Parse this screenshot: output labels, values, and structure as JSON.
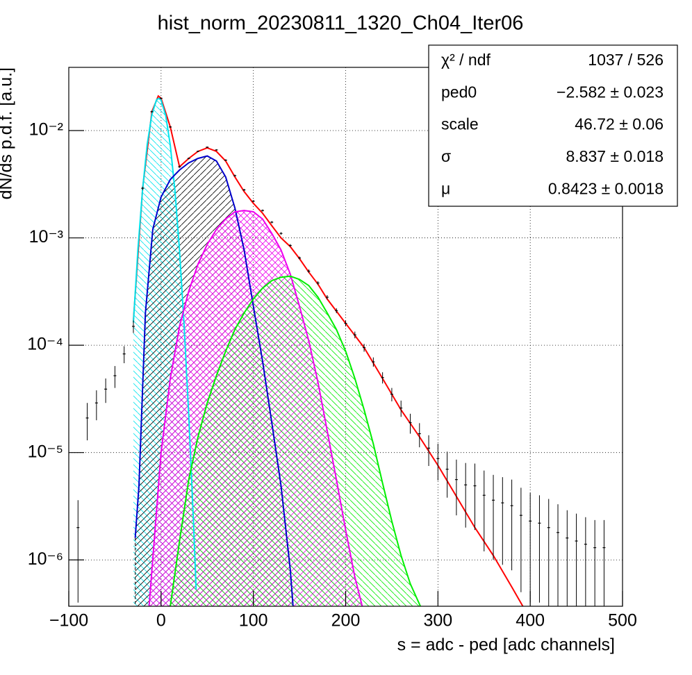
{
  "chart_data": {
    "type": "line",
    "title": "hist_norm_20230811_1320_Ch04_Iter06",
    "x_label": "s = adc - ped [adc channels]",
    "y_label": "dN/ds p.d.f. [a.u.]",
    "xlim": [
      -100,
      500
    ],
    "ylim": [
      3.7e-07,
      0.0388
    ],
    "log_y": true,
    "grid": true,
    "xticks": [
      {
        "value": -100,
        "label": "−100"
      },
      0,
      100,
      200,
      300,
      400,
      500
    ],
    "yticks": [
      {
        "value": 1e-06,
        "label": "10⁻⁶"
      },
      {
        "value": 1e-05,
        "label": "10⁻⁵"
      },
      {
        "value": 0.0001,
        "label": "10⁻⁴"
      },
      {
        "value": 0.001,
        "label": "10⁻³"
      },
      {
        "value": 0.01,
        "label": "10⁻²"
      }
    ],
    "series": [
      {
        "color": "#000000",
        "x": [
          -90,
          -80,
          -70,
          -60,
          -50,
          -40,
          -30,
          -20,
          -10,
          0,
          10,
          20,
          30,
          40,
          50,
          60,
          70,
          80,
          90,
          100,
          110,
          120,
          130,
          140,
          150,
          160,
          170,
          180,
          190,
          200,
          210,
          220,
          230,
          240,
          250,
          260,
          270,
          280,
          290,
          300,
          310,
          320,
          330,
          340,
          350,
          360,
          370,
          380,
          390,
          400,
          410,
          420,
          430,
          440,
          450,
          460,
          470,
          480
        ],
        "values": [
          2e-06,
          2.1e-05,
          2.9e-05,
          3.9e-05,
          5.2e-05,
          8.3e-05,
          0.00015,
          0.0029,
          0.015,
          0.02,
          0.0108,
          0.0046,
          0.0055,
          0.0064,
          0.007,
          0.0066,
          0.0053,
          0.0038,
          0.0028,
          0.0022,
          0.0018,
          0.0014,
          0.0011,
          0.00085,
          0.00065,
          0.00049,
          0.00038,
          0.00028,
          0.00021,
          0.00016,
          0.000125,
          9.5e-05,
          7e-05,
          5e-05,
          3.5e-05,
          2.6e-05,
          1.9e-05,
          1.5e-05,
          1.1e-05,
          8.8e-06,
          7e-06,
          5.6e-06,
          5e-06,
          4.9e-06,
          4e-06,
          3.6e-06,
          3.4e-06,
          3.2e-06,
          2.6e-06,
          2.3e-06,
          2.2e-06,
          2e-06,
          1.8e-06,
          1.6e-06,
          1.5e-06,
          1.4e-06,
          1.3e-06,
          1.3e-06
        ],
        "errors": [
          1.6e-06,
          8e-06,
          9e-06,
          1e-05,
          1.2e-05,
          1.5e-05,
          2e-05,
          0.0001,
          0.0003,
          0.0003,
          0.0002,
          0.0001,
          0.0001,
          0.0001,
          0.0001,
          0.0001,
          0.0001,
          8e-05,
          6e-05,
          5e-05,
          4e-05,
          3.5e-05,
          3e-05,
          2.5e-05,
          2e-05,
          1.8e-05,
          1.5e-05,
          1.3e-05,
          1.1e-05,
          1e-05,
          9e-06,
          8e-06,
          7e-06,
          6e-06,
          5e-06,
          4.5e-06,
          4e-06,
          3.8e-06,
          3.5e-06,
          3.3e-06,
          3.2e-06,
          3e-06,
          3e-06,
          3e-06,
          2.8e-06,
          2.6e-06,
          2.5e-06,
          2.4e-06,
          2.1e-06,
          1.9e-06,
          1.8e-06,
          1.7e-06,
          1.5e-06,
          1.3e-06,
          1.2e-06,
          1.1e-06,
          1.05e-06,
          1.05e-06
        ]
      },
      {
        "color": "#ff0000",
        "x": [
          -30,
          -20,
          -10,
          -3,
          0,
          10,
          20,
          30,
          40,
          50,
          60,
          70,
          80,
          90,
          100,
          110,
          120,
          130,
          140,
          150,
          160,
          170,
          180,
          200,
          220,
          240,
          260,
          280,
          300,
          320,
          340,
          360,
          380,
          392
        ],
        "values": [
          0.00017,
          0.0029,
          0.015,
          0.021,
          0.02,
          0.0108,
          0.0046,
          0.0055,
          0.0064,
          0.0069,
          0.0064,
          0.0052,
          0.0037,
          0.0027,
          0.0021,
          0.0017,
          0.0013,
          0.001,
          0.00083,
          0.00064,
          0.00048,
          0.00037,
          0.00027,
          0.00016,
          9.5e-05,
          4.9e-05,
          2.5e-05,
          1.4e-05,
          7.6e-06,
          3.9e-06,
          2e-06,
          1.1e-06,
          5.6e-07,
          3.7e-07
        ]
      },
      {
        "color": "#00e5ee",
        "hatch": "\\",
        "x": [
          -30,
          -25,
          -20,
          -15,
          -10,
          -5,
          -2.58,
          0,
          5,
          10,
          15,
          20,
          25,
          30,
          35,
          38
        ],
        "values": [
          0.000163,
          0.0008,
          0.00287,
          0.00745,
          0.0141,
          0.0193,
          0.02,
          0.0192,
          0.0138,
          0.0073,
          0.00277,
          0.00076,
          0.000153,
          2.2e-05,
          2.4e-06,
          5.3e-07
        ]
      },
      {
        "color": "#0000cc",
        "hatch": "/",
        "x": [
          -28,
          -24,
          -17,
          -9,
          0,
          10,
          20,
          30,
          40,
          50,
          60,
          70,
          80,
          90,
          100,
          110,
          120,
          130,
          140,
          143
        ],
        "values": [
          1.6e-06,
          4.9e-06,
          0.0002,
          0.0012,
          0.0024,
          0.0035,
          0.0043,
          0.005,
          0.0055,
          0.0058,
          0.0052,
          0.0037,
          0.0019,
          0.00077,
          0.00023,
          7.1e-05,
          1.9e-05,
          4.9e-06,
          8.1e-07,
          3.7e-07
        ]
      },
      {
        "color": "#ee00ee",
        "hatch": "x",
        "x": [
          -13,
          0,
          10,
          20,
          30,
          40,
          50,
          60,
          70,
          80,
          90,
          100,
          110,
          120,
          130,
          140,
          150,
          160,
          170,
          180,
          190,
          200,
          210,
          218
        ],
        "values": [
          3.7e-07,
          1e-05,
          4.9e-05,
          0.00015,
          0.00032,
          0.00057,
          0.00087,
          0.0012,
          0.0015,
          0.00175,
          0.0018,
          0.00175,
          0.0015,
          0.0011,
          0.00077,
          0.00046,
          0.00023,
          0.00011,
          4.5e-05,
          1.6e-05,
          5.6e-06,
          1.9e-06,
          6.9e-07,
          3.7e-07
        ]
      },
      {
        "color": "#00ee00",
        "hatch": "\\",
        "x": [
          10,
          20,
          30,
          40,
          50,
          60,
          70,
          80,
          90,
          100,
          110,
          120,
          130,
          140,
          150,
          160,
          170,
          180,
          190,
          200,
          210,
          220,
          230,
          240,
          250,
          260,
          270,
          281
        ],
        "values": [
          3.7e-07,
          1.5e-06,
          5.6e-06,
          1.4e-05,
          2.9e-05,
          5.2e-05,
          8.8e-05,
          0.00014,
          0.0002,
          0.00027,
          0.00034,
          0.0004,
          0.00043,
          0.00044,
          0.00041,
          0.00036,
          0.00028,
          0.0002,
          0.00014,
          8.8e-05,
          4.9e-05,
          2.5e-05,
          1.2e-05,
          5.2e-06,
          2.3e-06,
          1.1e-06,
          6e-07,
          3.7e-07
        ]
      }
    ],
    "stats": [
      {
        "label": "χ² / ndf",
        "value": "1037 / 526"
      },
      {
        "label": "ped0",
        "value": "−2.582 ± 0.023"
      },
      {
        "label": "scale",
        "value": "46.72 ± 0.06"
      },
      {
        "label": "σ",
        "value": "8.837 ± 0.018"
      },
      {
        "label": "μ",
        "value": "0.8423 ± 0.0018"
      }
    ]
  }
}
